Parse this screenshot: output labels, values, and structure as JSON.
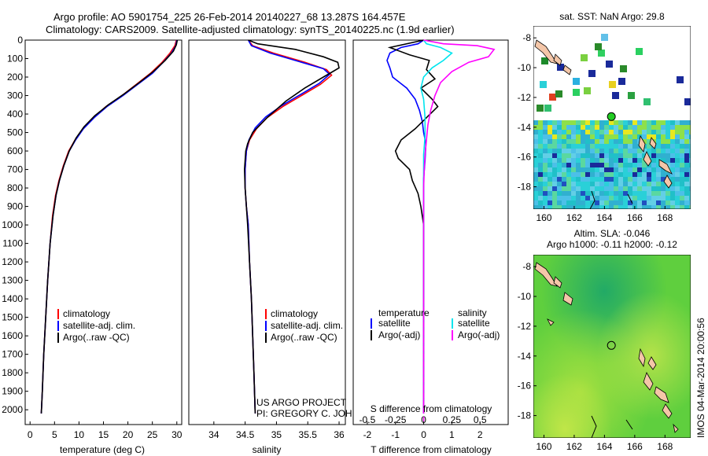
{
  "header": {
    "line1": "Argo profile: AO 5901754_225 26-Feb-2014 20140227_68 13.287S 164.457E",
    "line2": "Climatology: CARS2009. Satellite-adjusted climatology: synTS_20140225.nc (1.9d earlier)"
  },
  "credit": {
    "line1": "US ARGO PROJECT",
    "line2": "PI: GREGORY C. JOHNSON"
  },
  "stamp": "IMOS 04-Mar-2014 20:00:56",
  "colors": {
    "climatology": "#ff0000",
    "satellite": "#0000ff",
    "argo": "#000000",
    "sal_satellite": "#00e5ee",
    "sal_argo": "#ff00ff"
  },
  "chart_data": [
    {
      "id": "temperature",
      "type": "line",
      "xlabel": "temperature (deg C)",
      "xlim": [
        -1,
        31
      ],
      "xticks": [
        0,
        5,
        10,
        15,
        20,
        25,
        30
      ],
      "ylim": [
        2080,
        0
      ],
      "yticks": [
        0,
        100,
        200,
        300,
        400,
        500,
        600,
        700,
        800,
        900,
        1000,
        1100,
        1200,
        1300,
        1400,
        1500,
        1600,
        1700,
        1800,
        1900,
        2000
      ],
      "legend": [
        "climatology",
        "satellite-adj. clim.",
        "Argo(..raw -QC)"
      ],
      "series": [
        {
          "name": "climatology",
          "color": "#ff0000",
          "points": [
            [
              29.9,
              0
            ],
            [
              29.6,
              30
            ],
            [
              28.6,
              70
            ],
            [
              27.0,
              120
            ],
            [
              24.6,
              180
            ],
            [
              21.7,
              240
            ],
            [
              18.8,
              300
            ],
            [
              15.5,
              360
            ],
            [
              13.0,
              420
            ],
            [
              10.8,
              480
            ],
            [
              9.2,
              540
            ],
            [
              7.9,
              600
            ],
            [
              6.8,
              680
            ],
            [
              5.9,
              760
            ],
            [
              5.2,
              840
            ],
            [
              4.6,
              950
            ],
            [
              4.1,
              1100
            ],
            [
              3.6,
              1300
            ],
            [
              3.2,
              1500
            ],
            [
              2.8,
              1700
            ],
            [
              2.5,
              1900
            ],
            [
              2.3,
              2020
            ]
          ]
        },
        {
          "name": "satellite-adj. clim.",
          "color": "#0000ff",
          "points": [
            [
              30.0,
              0
            ],
            [
              29.8,
              30
            ],
            [
              28.9,
              70
            ],
            [
              27.2,
              120
            ],
            [
              25.0,
              180
            ],
            [
              22.0,
              240
            ],
            [
              19.0,
              300
            ],
            [
              15.7,
              360
            ],
            [
              13.1,
              420
            ],
            [
              10.9,
              480
            ],
            [
              9.3,
              540
            ],
            [
              8.0,
              600
            ],
            [
              6.9,
              680
            ],
            [
              6.0,
              760
            ],
            [
              5.3,
              840
            ],
            [
              4.7,
              950
            ],
            [
              4.1,
              1100
            ],
            [
              3.6,
              1300
            ],
            [
              3.2,
              1500
            ],
            [
              2.8,
              1700
            ],
            [
              2.5,
              1900
            ],
            [
              2.3,
              2020
            ]
          ]
        },
        {
          "name": "Argo(..raw -QC)",
          "color": "#000000",
          "points": [
            [
              30.1,
              0
            ],
            [
              29.9,
              25
            ],
            [
              29.3,
              60
            ],
            [
              27.6,
              110
            ],
            [
              25.2,
              170
            ],
            [
              22.3,
              230
            ],
            [
              19.3,
              290
            ],
            [
              16.0,
              350
            ],
            [
              13.2,
              410
            ],
            [
              11.0,
              470
            ],
            [
              9.4,
              530
            ],
            [
              8.0,
              600
            ],
            [
              6.9,
              680
            ],
            [
              6.0,
              760
            ],
            [
              5.3,
              840
            ],
            [
              4.7,
              950
            ],
            [
              4.1,
              1100
            ],
            [
              3.6,
              1300
            ],
            [
              3.2,
              1500
            ],
            [
              2.8,
              1700
            ],
            [
              2.5,
              1900
            ],
            [
              2.3,
              2020
            ]
          ]
        }
      ]
    },
    {
      "id": "salinity",
      "type": "line",
      "xlabel": "salinity",
      "xlim": [
        33.6,
        36.1
      ],
      "xticks": [
        34,
        34.5,
        35,
        35.5,
        36
      ],
      "ylim": [
        2080,
        0
      ],
      "legend": [
        "climatology",
        "satellite-adj. clim.",
        "Argo(..raw -QC)"
      ],
      "series": [
        {
          "name": "climatology",
          "color": "#ff0000",
          "points": [
            [
              34.55,
              0
            ],
            [
              34.62,
              30
            ],
            [
              34.95,
              70
            ],
            [
              35.45,
              120
            ],
            [
              35.8,
              160
            ],
            [
              35.88,
              190
            ],
            [
              35.7,
              240
            ],
            [
              35.4,
              300
            ],
            [
              35.1,
              360
            ],
            [
              34.85,
              420
            ],
            [
              34.68,
              480
            ],
            [
              34.57,
              540
            ],
            [
              34.52,
              600
            ],
            [
              34.5,
              700
            ],
            [
              34.5,
              800
            ],
            [
              34.52,
              900
            ],
            [
              34.55,
              1000
            ],
            [
              34.57,
              1200
            ],
            [
              34.6,
              1400
            ],
            [
              34.62,
              1600
            ],
            [
              34.64,
              1800
            ],
            [
              34.66,
              2020
            ]
          ]
        },
        {
          "name": "satellite-adj. clim.",
          "color": "#0000ff",
          "points": [
            [
              34.55,
              0
            ],
            [
              34.6,
              30
            ],
            [
              34.9,
              70
            ],
            [
              35.4,
              120
            ],
            [
              35.75,
              155
            ],
            [
              35.85,
              185
            ],
            [
              35.68,
              235
            ],
            [
              35.38,
              295
            ],
            [
              35.08,
              355
            ],
            [
              34.83,
              415
            ],
            [
              34.66,
              475
            ],
            [
              34.56,
              540
            ],
            [
              34.52,
              600
            ],
            [
              34.5,
              700
            ],
            [
              34.5,
              800
            ],
            [
              34.52,
              900
            ],
            [
              34.55,
              1000
            ],
            [
              34.57,
              1200
            ],
            [
              34.6,
              1400
            ],
            [
              34.62,
              1600
            ],
            [
              34.64,
              1800
            ],
            [
              34.66,
              2020
            ]
          ]
        },
        {
          "name": "Argo(..raw -QC)",
          "color": "#000000",
          "points": [
            [
              34.55,
              0
            ],
            [
              34.7,
              20
            ],
            [
              35.3,
              50
            ],
            [
              35.75,
              90
            ],
            [
              35.98,
              120
            ],
            [
              36.0,
              150
            ],
            [
              35.9,
              170
            ],
            [
              35.75,
              200
            ],
            [
              35.45,
              260
            ],
            [
              35.15,
              330
            ],
            [
              34.85,
              420
            ],
            [
              34.62,
              500
            ],
            [
              34.54,
              560
            ],
            [
              34.51,
              600
            ],
            [
              34.49,
              700
            ],
            [
              34.5,
              800
            ],
            [
              34.52,
              900
            ],
            [
              34.54,
              1000
            ],
            [
              34.57,
              1200
            ],
            [
              34.6,
              1400
            ],
            [
              34.62,
              1600
            ],
            [
              34.64,
              1800
            ],
            [
              34.66,
              2020
            ]
          ]
        }
      ]
    },
    {
      "id": "difference",
      "type": "line",
      "xlabel_top": "S difference from climatology",
      "xlabel": "T difference from climatology",
      "xlim": [
        -2.5,
        3.0
      ],
      "xticks": [
        -2,
        -1,
        0,
        1,
        2
      ],
      "sticks": [
        -0.5,
        -0.25,
        0,
        0.25,
        0.5
      ],
      "ylim": [
        2080,
        0
      ],
      "legend_left_title": "temperature",
      "legend_right_title": "salinity",
      "legend": [
        "satellite",
        "Argo(-adj)",
        "satellite",
        "Argo(-adj)"
      ],
      "series": [
        {
          "name": "satellite",
          "color": "#0000ff",
          "points": [
            [
              0.0,
              0
            ],
            [
              -0.2,
              20
            ],
            [
              -0.8,
              40
            ],
            [
              -1.2,
              70
            ],
            [
              -1.3,
              110
            ],
            [
              -1.2,
              150
            ],
            [
              -1.1,
              200
            ],
            [
              -0.6,
              260
            ],
            [
              -0.3,
              320
            ],
            [
              -0.15,
              380
            ],
            [
              -0.05,
              440
            ],
            [
              0.0,
              500
            ],
            [
              0.08,
              560
            ],
            [
              0.05,
              650
            ],
            [
              0.0,
              750
            ],
            [
              0.0,
              850
            ],
            [
              0.0,
              1000
            ],
            [
              0.0,
              1500
            ],
            [
              0.0,
              2020
            ]
          ]
        },
        {
          "name": "Argo(-adj)",
          "color": "#000000",
          "points": [
            [
              0.0,
              0
            ],
            [
              -1.2,
              40
            ],
            [
              -0.5,
              80
            ],
            [
              0.2,
              110
            ],
            [
              0.1,
              160
            ],
            [
              0.4,
              210
            ],
            [
              -0.1,
              260
            ],
            [
              0.3,
              320
            ],
            [
              0.5,
              360
            ],
            [
              0.1,
              420
            ],
            [
              -0.3,
              480
            ],
            [
              -0.8,
              540
            ],
            [
              -1.0,
              600
            ],
            [
              -0.9,
              640
            ],
            [
              -0.5,
              700
            ],
            [
              -0.4,
              760
            ],
            [
              -0.2,
              830
            ],
            [
              -0.1,
              900
            ],
            [
              0.0,
              1000
            ],
            [
              0.0,
              1500
            ],
            [
              0.0,
              2020
            ]
          ]
        },
        {
          "name": "satellite",
          "color": "#00e5ee",
          "points": [
            [
              0.0,
              0
            ],
            [
              0.1,
              20
            ],
            [
              0.6,
              40
            ],
            [
              1.0,
              70
            ],
            [
              0.7,
              110
            ],
            [
              0.3,
              150
            ],
            [
              0.0,
              200
            ],
            [
              -0.1,
              260
            ],
            [
              0.0,
              320
            ],
            [
              0.05,
              420
            ],
            [
              0.05,
              520
            ],
            [
              0.0,
              620
            ],
            [
              0.0,
              800
            ],
            [
              0.0,
              1200
            ],
            [
              0.0,
              2020
            ]
          ]
        },
        {
          "name": "Argo(-adj)",
          "color": "#ff00ff",
          "dashed_tail": true,
          "points": [
            [
              0.0,
              0
            ],
            [
              0.7,
              20
            ],
            [
              1.9,
              30
            ],
            [
              2.5,
              50
            ],
            [
              2.3,
              90
            ],
            [
              1.6,
              120
            ],
            [
              1.0,
              170
            ],
            [
              0.6,
              230
            ],
            [
              0.4,
              300
            ],
            [
              0.25,
              380
            ],
            [
              0.15,
              460
            ],
            [
              0.1,
              540
            ],
            [
              0.05,
              620
            ],
            [
              0.02,
              700
            ],
            [
              0.0,
              800
            ],
            [
              0.0,
              1000
            ],
            [
              0.0,
              2020
            ]
          ]
        }
      ]
    },
    {
      "id": "sst-map",
      "type": "heatmap",
      "title": "sat. SST: NaN  Argo: 29.8",
      "xticks": [
        160,
        162,
        164,
        166,
        168
      ],
      "yticks": [
        -8,
        -10,
        -12,
        -14,
        -16,
        -18
      ],
      "xlim": [
        159.3,
        169.7
      ],
      "ylim": [
        -19.5,
        -7.2
      ],
      "marker": {
        "lon": 164.457,
        "lat": -13.287,
        "fill": "#22cc22"
      }
    },
    {
      "id": "sla-map",
      "type": "heatmap",
      "title_line1": "Altim. SLA: -0.046",
      "title_line2": "Argo h1000: -0.11 h2000: -0.12",
      "xticks": [
        160,
        162,
        164,
        166,
        168
      ],
      "yticks": [
        -8,
        -10,
        -12,
        -14,
        -16,
        -18
      ],
      "xlim": [
        159.3,
        169.7
      ],
      "ylim": [
        -19.5,
        -7.2
      ],
      "marker": {
        "lon": 164.457,
        "lat": -13.287,
        "fill": "none"
      }
    }
  ]
}
